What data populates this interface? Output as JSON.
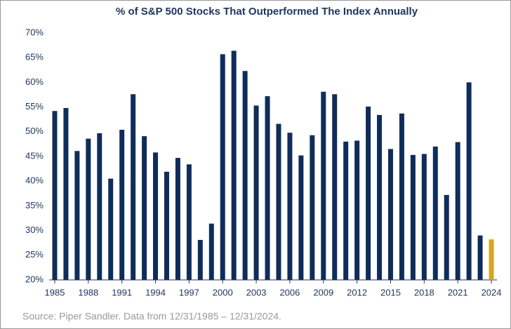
{
  "chart_data": {
    "type": "bar",
    "title": "% of S&P 500 Stocks That Outperformed The Index Annually",
    "source": "Source: Piper Sandler. Data from 12/31/1985 – 12/31/2024.",
    "categories": [
      "1985",
      null,
      null,
      "1988",
      null,
      null,
      "1991",
      null,
      null,
      "1994",
      null,
      null,
      "1997",
      null,
      null,
      "2000",
      null,
      null,
      "2003",
      null,
      null,
      "2006",
      null,
      null,
      "2009",
      null,
      null,
      "2012",
      null,
      null,
      "2015",
      null,
      null,
      "2018",
      null,
      null,
      "2021",
      null,
      null,
      "2024"
    ],
    "values": [
      54.2,
      54.8,
      46.1,
      48.6,
      49.7,
      40.5,
      50.4,
      57.6,
      49.1,
      45.8,
      41.9,
      44.7,
      43.4,
      28.1,
      31.4,
      65.7,
      66.4,
      62.3,
      55.3,
      57.2,
      51.6,
      49.8,
      45.2,
      49.3,
      58.1,
      57.6,
      48.0,
      48.2,
      55.1,
      53.4,
      46.5,
      53.7,
      45.3,
      45.5,
      47.0,
      37.2,
      47.9,
      60.0,
      29.0,
      28.2
    ],
    "colors": [
      "#0f2d5a",
      "#0f2d5a",
      "#0f2d5a",
      "#0f2d5a",
      "#0f2d5a",
      "#0f2d5a",
      "#0f2d5a",
      "#0f2d5a",
      "#0f2d5a",
      "#0f2d5a",
      "#0f2d5a",
      "#0f2d5a",
      "#0f2d5a",
      "#0f2d5a",
      "#0f2d5a",
      "#0f2d5a",
      "#0f2d5a",
      "#0f2d5a",
      "#0f2d5a",
      "#0f2d5a",
      "#0f2d5a",
      "#0f2d5a",
      "#0f2d5a",
      "#0f2d5a",
      "#0f2d5a",
      "#0f2d5a",
      "#0f2d5a",
      "#0f2d5a",
      "#0f2d5a",
      "#0f2d5a",
      "#0f2d5a",
      "#0f2d5a",
      "#0f2d5a",
      "#0f2d5a",
      "#0f2d5a",
      "#0f2d5a",
      "#0f2d5a",
      "#0f2d5a",
      "#0f2d5a",
      "#d9a521"
    ],
    "ylim": [
      20,
      70
    ],
    "yticks": [
      {
        "value": 20,
        "label": "20%"
      },
      {
        "value": 25,
        "label": "25%"
      },
      {
        "value": 30,
        "label": "30%"
      },
      {
        "value": 35,
        "label": "35%"
      },
      {
        "value": 40,
        "label": "40%"
      },
      {
        "value": 45,
        "label": "45%"
      },
      {
        "value": 50,
        "label": "50%"
      },
      {
        "value": 55,
        "label": "55%"
      },
      {
        "value": 60,
        "label": "60%"
      },
      {
        "value": 65,
        "label": "65%"
      },
      {
        "value": 70,
        "label": "70%"
      }
    ],
    "grid": false
  }
}
